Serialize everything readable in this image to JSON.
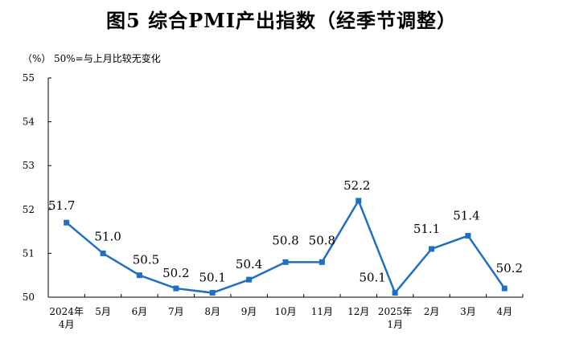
{
  "title": "图5  综合PMI产出指数（经季节调整）",
  "unit_label": "（%）",
  "note": "50%=与上月比较无变化",
  "colors": {
    "line": "#1f6fc5",
    "axis": "#000000"
  },
  "chart_data": {
    "type": "line",
    "categories": [
      [
        "2024年",
        "4月"
      ],
      [
        "5月"
      ],
      [
        "6月"
      ],
      [
        "7月"
      ],
      [
        "8月"
      ],
      [
        "9月"
      ],
      [
        "10月"
      ],
      [
        "11月"
      ],
      [
        "12月"
      ],
      [
        "2025年",
        "1月"
      ],
      [
        "2月"
      ],
      [
        "3月"
      ],
      [
        "4月"
      ]
    ],
    "values": [
      51.7,
      51.0,
      50.5,
      50.2,
      50.1,
      50.4,
      50.8,
      50.8,
      52.2,
      50.1,
      51.1,
      51.4,
      50.2
    ],
    "ylim": [
      50,
      55
    ],
    "yticks": [
      50,
      51,
      52,
      53,
      54,
      55
    ],
    "grid": false,
    "marker": "square"
  }
}
